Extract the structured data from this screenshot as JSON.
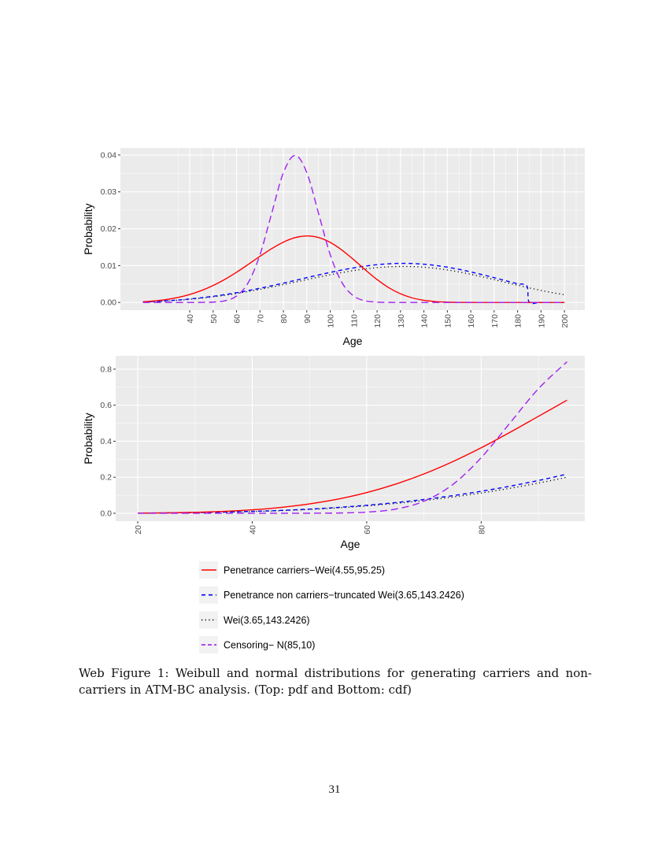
{
  "chart_data": [
    {
      "type": "line",
      "title": "",
      "xlabel": "Age",
      "ylabel": "Probability",
      "xlim": [
        10.4,
        208.7
      ],
      "ylim": [
        -0.0021,
        0.0419
      ],
      "grid": true,
      "x_ticks": [
        40,
        50,
        60,
        70,
        80,
        90,
        100,
        110,
        120,
        130,
        140,
        150,
        160,
        170,
        180,
        190,
        200
      ],
      "y_ticks": [
        0.0,
        0.01,
        0.02,
        0.03,
        0.04
      ],
      "y_tick_labels": [
        "0.00",
        "0.01",
        "0.02",
        "0.03",
        "0.04"
      ],
      "series": [
        {
          "name": "Penetrance carriers−Wei(4.55,95.25)",
          "color": "#ff0000",
          "dash": "solid",
          "x": [
            20,
            25,
            30,
            35,
            40,
            45,
            50,
            55,
            60,
            65,
            70,
            75,
            80,
            85,
            90,
            95,
            100,
            105,
            110,
            115,
            120,
            125,
            130,
            135,
            140,
            145,
            150,
            155,
            160,
            165,
            170,
            180,
            190,
            200
          ],
          "y": [
            0.000187,
            0.000414,
            0.000786,
            0.001352,
            0.002154,
            0.003226,
            0.004595,
            0.006262,
            0.008193,
            0.01032,
            0.01251,
            0.0146,
            0.01636,
            0.01758,
            0.01804,
            0.01762,
            0.0163,
            0.01421,
            0.01161,
            0.00883,
            0.00621,
            0.004,
            0.00235,
            0.00124,
            0.000587,
            0.000245,
            8.93e-05,
            2.83e-05,
            8e-06,
            2e-06,
            0,
            0,
            0,
            0
          ]
        },
        {
          "name": "Penetrance non carriers−truncated Wei(3.65,143.2426)",
          "color": "#0000ff",
          "dash": "dashed",
          "x": [
            20,
            25,
            30,
            35,
            40,
            45,
            50,
            55,
            60,
            65,
            70,
            75,
            80,
            85,
            90,
            95,
            100,
            105,
            110,
            115,
            120,
            125,
            130,
            135,
            140,
            145,
            150,
            155,
            160,
            165,
            170,
            175,
            180,
            184,
            185,
            190,
            200
          ],
          "y": [
            0.00015,
            0.000271,
            0.00044,
            0.00066,
            0.000932,
            0.001267,
            0.001665,
            0.002123,
            0.002644,
            0.003223,
            0.003854,
            0.004532,
            0.00524,
            0.00598,
            0.006717,
            0.00745,
            0.008152,
            0.008801,
            0.00938,
            0.009867,
            0.010242,
            0.010492,
            0.010598,
            0.010562,
            0.010373,
            0.010038,
            0.009571,
            0.008985,
            0.008291,
            0.007531,
            0.006717,
            0.005882,
            0.005068,
            0.00445,
            0,
            0,
            0
          ]
        },
        {
          "name": "Wei(3.65,143.2426)",
          "color": "#000000",
          "dash": "dotted",
          "x": [
            20,
            25,
            30,
            35,
            40,
            45,
            50,
            55,
            60,
            65,
            70,
            75,
            80,
            85,
            90,
            95,
            100,
            105,
            110,
            115,
            120,
            125,
            130,
            135,
            140,
            145,
            150,
            155,
            160,
            165,
            170,
            175,
            180,
            185,
            190,
            195,
            200
          ],
          "y": [
            0.000138,
            0.00025,
            0.000405,
            0.000608,
            0.000859,
            0.001168,
            0.001534,
            0.001956,
            0.002436,
            0.00297,
            0.003551,
            0.004176,
            0.004829,
            0.00551,
            0.00619,
            0.006865,
            0.007512,
            0.00811,
            0.008644,
            0.009092,
            0.009438,
            0.009668,
            0.009766,
            0.009733,
            0.009559,
            0.00925,
            0.00882,
            0.00828,
            0.00764,
            0.00694,
            0.00619,
            0.00542,
            0.00467,
            0.00395,
            0.00327,
            0.00264,
            0.0021
          ]
        },
        {
          "name": "Censoring− N(85,10)",
          "color": "#a020f0",
          "dash": "longdash",
          "x": [
            20,
            30,
            40,
            45,
            50,
            55,
            60,
            65,
            70,
            75,
            80,
            85,
            90,
            95,
            100,
            105,
            110,
            115,
            120,
            125,
            130,
            140,
            160,
            200
          ],
          "y": [
            0,
            0,
            1.6e-06,
            1.34e-05,
            8.73e-05,
            0.000443,
            0.001753,
            0.005399,
            0.012952,
            0.024197,
            0.035207,
            0.039894,
            0.035207,
            0.024197,
            0.012952,
            0.005399,
            0.001753,
            0.000443,
            8.73e-05,
            1.34e-05,
            0,
            0,
            0,
            0
          ]
        }
      ]
    },
    {
      "type": "line",
      "title": "",
      "xlabel": "Age",
      "ylabel": "Probability",
      "xlim": [
        16.15,
        98.1
      ],
      "ylim": [
        -0.044,
        0.874
      ],
      "grid": true,
      "x_ticks": [
        20,
        40,
        60,
        80
      ],
      "y_ticks": [
        0.0,
        0.2,
        0.4,
        0.6,
        0.8
      ],
      "y_tick_labels": [
        "0.0",
        "0.2",
        "0.4",
        "0.6",
        "0.8"
      ],
      "series": [
        {
          "name": "Penetrance carriers−Wei(4.55,95.25)",
          "color": "#ff0000",
          "dash": "solid",
          "x": [
            20,
            25,
            30,
            35,
            40,
            45,
            50,
            55,
            60,
            65,
            70,
            75,
            80,
            85,
            90,
            95
          ],
          "y": [
            0.0008,
            0.0023,
            0.0052,
            0.0105,
            0.0191,
            0.0324,
            0.0519,
            0.0789,
            0.1149,
            0.1612,
            0.2183,
            0.2861,
            0.3636,
            0.4489,
            0.5382,
            0.6278
          ]
        },
        {
          "name": "Penetrance non carriers−truncated Wei(3.65,143.2426)",
          "color": "#0000ff",
          "dash": "dashed",
          "x": [
            20,
            25,
            30,
            35,
            40,
            45,
            50,
            55,
            60,
            65,
            70,
            75,
            80,
            85,
            90,
            95
          ],
          "y": [
            0.0008,
            0.0019,
            0.0036,
            0.0063,
            0.0103,
            0.0157,
            0.023,
            0.0324,
            0.0444,
            0.059,
            0.0767,
            0.0977,
            0.122,
            0.1501,
            0.1818,
            0.2172
          ]
        },
        {
          "name": "Wei(3.65,143.2426)",
          "color": "#000000",
          "dash": "dotted",
          "x": [
            20,
            25,
            30,
            35,
            40,
            45,
            50,
            55,
            60,
            65,
            70,
            75,
            80,
            85,
            90,
            95
          ],
          "y": [
            0.0008,
            0.0017,
            0.0033,
            0.0058,
            0.0095,
            0.0145,
            0.0212,
            0.0299,
            0.0409,
            0.0544,
            0.0707,
            0.09,
            0.1124,
            0.1383,
            0.1675,
            0.2002
          ]
        },
        {
          "name": "Censoring− N(85,10)",
          "color": "#a020f0",
          "dash": "longdash",
          "x": [
            20,
            25,
            30,
            35,
            40,
            45,
            50,
            55,
            60,
            65,
            70,
            75,
            80,
            85,
            90,
            95
          ],
          "y": [
            0,
            0,
            0,
            3e-07,
            3.4e-06,
            3.17e-05,
            0.000233,
            0.00135,
            0.00621,
            0.02275,
            0.06681,
            0.15866,
            0.30854,
            0.5,
            0.69146,
            0.84134
          ]
        }
      ]
    }
  ],
  "legend": {
    "placement": "bottom",
    "items": [
      {
        "label": "Penetrance carriers−Wei(4.55,95.25)",
        "color": "#ff0000",
        "dash": "solid"
      },
      {
        "label": "Penetrance non carriers−truncated Wei(3.65,143.2426)",
        "color": "#0000ff",
        "dash": "dashed"
      },
      {
        "label": "Wei(3.65,143.2426)",
        "color": "#000000",
        "dash": "dotted"
      },
      {
        "label": "Censoring− N(85,10)",
        "color": "#a020f0",
        "dash": "longdash"
      }
    ]
  },
  "caption": "Web Figure 1: Weibull and normal distributions for generating carriers and non-carriers in ATM-BC analysis. (Top: pdf and Bottom: cdf)",
  "page_number": "31"
}
